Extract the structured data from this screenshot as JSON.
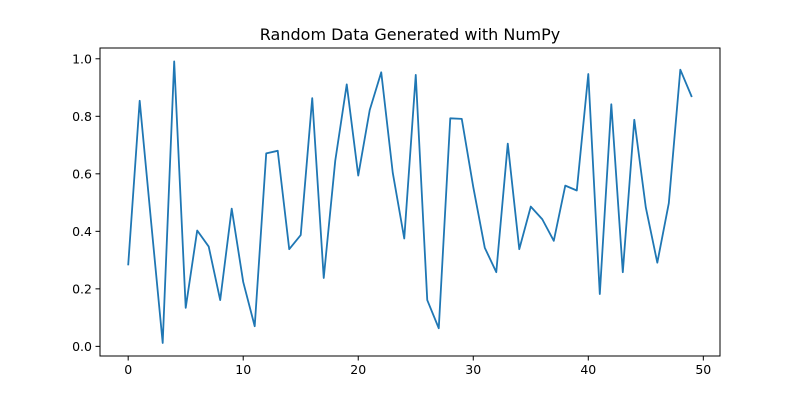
{
  "chart_data": {
    "type": "line",
    "title": "Random Data Generated with NumPy",
    "xlabel": "",
    "ylabel": "",
    "xlim": [
      -2.45,
      51.45
    ],
    "ylim": [
      -0.0335,
      1.0375
    ],
    "xticks": [
      0,
      10,
      20,
      30,
      40,
      50
    ],
    "xtick_labels": [
      "0",
      "10",
      "20",
      "30",
      "40",
      "50"
    ],
    "yticks": [
      0.0,
      0.2,
      0.4,
      0.6,
      0.8,
      1.0
    ],
    "ytick_labels": [
      "0.0",
      "0.2",
      "0.4",
      "0.6",
      "0.8",
      "1.0"
    ],
    "grid": false,
    "legend": "none",
    "series": [
      {
        "color": "#1f77b4",
        "x": [
          0,
          1,
          2,
          3,
          4,
          5,
          6,
          7,
          8,
          9,
          10,
          11,
          12,
          13,
          14,
          15,
          16,
          17,
          18,
          19,
          20,
          21,
          22,
          23,
          24,
          25,
          26,
          27,
          28,
          29,
          30,
          31,
          32,
          33,
          34,
          35,
          36,
          37,
          38,
          39,
          40,
          41,
          42,
          43,
          44,
          45,
          46,
          47,
          48,
          49
        ],
        "values": [
          0.282,
          0.854,
          0.43,
          0.012,
          0.991,
          0.134,
          0.403,
          0.347,
          0.161,
          0.479,
          0.224,
          0.07,
          0.671,
          0.68,
          0.338,
          0.387,
          0.863,
          0.238,
          0.645,
          0.911,
          0.594,
          0.822,
          0.953,
          0.604,
          0.375,
          0.944,
          0.161,
          0.063,
          0.793,
          0.791,
          0.554,
          0.343,
          0.258,
          0.705,
          0.338,
          0.486,
          0.442,
          0.367,
          0.559,
          0.542,
          0.947,
          0.182,
          0.842,
          0.258,
          0.788,
          0.483,
          0.291,
          0.498,
          0.962,
          0.867
        ]
      }
    ]
  }
}
